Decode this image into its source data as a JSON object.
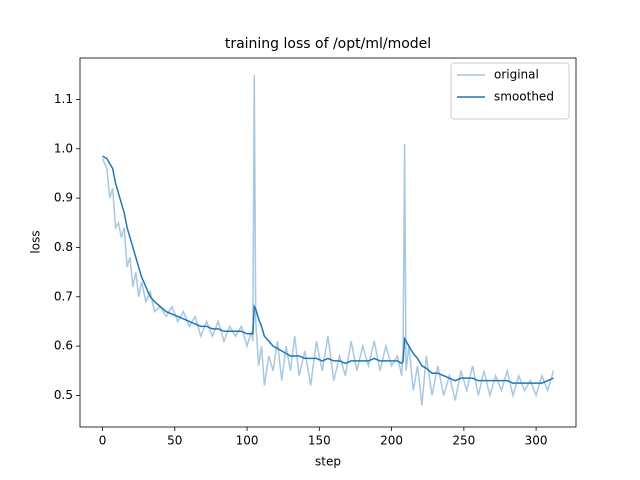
{
  "chart_data": {
    "type": "line",
    "title": "training loss of /opt/ml/model",
    "x_label": "step",
    "y_label": "loss",
    "x": [
      0,
      3,
      5,
      7,
      9,
      11,
      13,
      15,
      17,
      19,
      21,
      23,
      25,
      27,
      30,
      33,
      36,
      40,
      44,
      48,
      52,
      56,
      60,
      64,
      68,
      72,
      76,
      80,
      84,
      88,
      92,
      96,
      100,
      103,
      104,
      105,
      106,
      108,
      110,
      112,
      115,
      118,
      121,
      124,
      127,
      130,
      133,
      136,
      140,
      144,
      148,
      152,
      156,
      160,
      164,
      168,
      172,
      176,
      180,
      184,
      188,
      192,
      196,
      200,
      204,
      207,
      208,
      209,
      210,
      212,
      215,
      218,
      221,
      224,
      228,
      232,
      236,
      240,
      244,
      248,
      252,
      256,
      260,
      264,
      268,
      272,
      276,
      280,
      284,
      288,
      292,
      296,
      300,
      304,
      308,
      312
    ],
    "series": [
      {
        "name": "original",
        "color": "#a6c8e1",
        "values": [
          0.98,
          0.96,
          0.9,
          0.92,
          0.84,
          0.85,
          0.82,
          0.84,
          0.76,
          0.78,
          0.72,
          0.75,
          0.7,
          0.73,
          0.69,
          0.71,
          0.67,
          0.68,
          0.66,
          0.68,
          0.65,
          0.67,
          0.64,
          0.66,
          0.62,
          0.65,
          0.62,
          0.65,
          0.61,
          0.64,
          0.62,
          0.64,
          0.6,
          0.63,
          0.61,
          1.15,
          0.65,
          0.56,
          0.6,
          0.52,
          0.58,
          0.55,
          0.61,
          0.53,
          0.6,
          0.55,
          0.62,
          0.54,
          0.59,
          0.52,
          0.61,
          0.55,
          0.62,
          0.53,
          0.58,
          0.54,
          0.61,
          0.55,
          0.6,
          0.56,
          0.61,
          0.55,
          0.6,
          0.56,
          0.58,
          0.54,
          0.6,
          1.01,
          0.55,
          0.6,
          0.51,
          0.56,
          0.48,
          0.58,
          0.5,
          0.56,
          0.5,
          0.54,
          0.49,
          0.55,
          0.51,
          0.56,
          0.5,
          0.55,
          0.5,
          0.54,
          0.51,
          0.55,
          0.5,
          0.54,
          0.51,
          0.53,
          0.5,
          0.54,
          0.51,
          0.55
        ]
      },
      {
        "name": "smoothed",
        "color": "#1f77b4",
        "values": [
          0.985,
          0.98,
          0.97,
          0.96,
          0.93,
          0.91,
          0.89,
          0.87,
          0.84,
          0.82,
          0.8,
          0.78,
          0.76,
          0.74,
          0.72,
          0.7,
          0.69,
          0.68,
          0.67,
          0.665,
          0.66,
          0.655,
          0.65,
          0.645,
          0.64,
          0.64,
          0.635,
          0.635,
          0.63,
          0.63,
          0.63,
          0.63,
          0.625,
          0.625,
          0.625,
          0.68,
          0.675,
          0.655,
          0.64,
          0.62,
          0.61,
          0.6,
          0.595,
          0.59,
          0.585,
          0.58,
          0.58,
          0.58,
          0.575,
          0.575,
          0.575,
          0.57,
          0.575,
          0.57,
          0.57,
          0.565,
          0.57,
          0.57,
          0.57,
          0.57,
          0.575,
          0.57,
          0.57,
          0.57,
          0.57,
          0.565,
          0.57,
          0.615,
          0.61,
          0.6,
          0.585,
          0.575,
          0.56,
          0.555,
          0.545,
          0.545,
          0.54,
          0.535,
          0.53,
          0.535,
          0.535,
          0.535,
          0.53,
          0.53,
          0.53,
          0.53,
          0.53,
          0.53,
          0.525,
          0.525,
          0.525,
          0.525,
          0.525,
          0.525,
          0.53,
          0.535
        ]
      }
    ],
    "xlim": [
      -15.6,
      327.6
    ],
    "ylim": [
      0.436,
      1.184
    ],
    "xticks": [
      0,
      50,
      100,
      150,
      200,
      250,
      300
    ],
    "yticks": [
      0.5,
      0.6,
      0.7,
      0.8,
      0.9,
      {
        "value": 1.0,
        "label": "1.0"
      },
      1.1
    ],
    "legend": "upper right"
  }
}
